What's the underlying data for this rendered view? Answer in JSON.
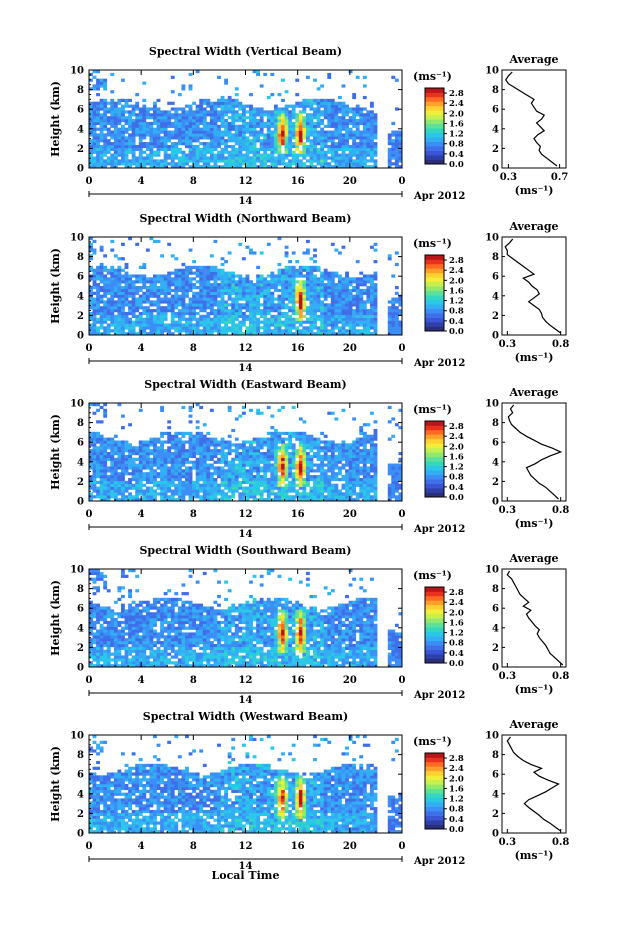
{
  "figure": {
    "x_title": "Local Time",
    "y_label": "Height (km)",
    "date_label": "Apr 2012",
    "day_label": "14",
    "x_ticks": [
      "0",
      "4",
      "8",
      "12",
      "16",
      "20",
      "0"
    ],
    "y_ticks": [
      "0",
      "2",
      "4",
      "6",
      "8",
      "10"
    ],
    "colorbar": {
      "unit": "(ms⁻¹)",
      "ticks": [
        "0.0",
        "0.4",
        "0.8",
        "1.2",
        "1.6",
        "2.0",
        "2.4",
        "2.8"
      ],
      "range": [
        0.0,
        3.0
      ],
      "colors": [
        "#2b2f7a",
        "#2d3fa8",
        "#3a55d6",
        "#3f6fe8",
        "#3a8ef5",
        "#32aef5",
        "#2ac8e6",
        "#35d6c0",
        "#5ce09a",
        "#90e870",
        "#c6ef50",
        "#f0ee3c",
        "#ffd032",
        "#ffa02a",
        "#ff6a22",
        "#e8321e",
        "#b8161a"
      ]
    },
    "avg_title": "Average",
    "avg_unit": "(ms⁻¹)"
  },
  "chart_data": [
    {
      "type": "heatmap",
      "title": "Spectral Width (Vertical Beam)",
      "xlabel": "Local Time",
      "ylabel": "Height (km)",
      "xlim": [
        0,
        24
      ],
      "ylim": [
        0,
        10
      ],
      "colorbar_range": [
        0.0,
        3.0
      ],
      "high_value_columns_hours": [
        14.8,
        16.2
      ],
      "average_profile": {
        "type": "line",
        "title": "Average",
        "xlabel": "(ms⁻¹)",
        "ylabel": "Height (km)",
        "x_ticks": [
          "0.3",
          "0.7"
        ],
        "xlim": [
          0.25,
          0.75
        ],
        "ylim": [
          0,
          10
        ],
        "height_km": [
          0.2,
          0.6,
          1.0,
          1.4,
          1.8,
          2.2,
          2.6,
          3.0,
          3.4,
          3.8,
          4.2,
          4.6,
          5.0,
          5.4,
          5.8,
          6.2,
          6.6,
          7.0,
          7.4,
          7.8,
          8.2,
          8.6,
          9.0,
          9.4,
          9.8
        ],
        "value": [
          0.68,
          0.64,
          0.6,
          0.56,
          0.54,
          0.55,
          0.52,
          0.5,
          0.53,
          0.58,
          0.55,
          0.52,
          0.56,
          0.58,
          0.52,
          0.5,
          0.48,
          0.5,
          0.45,
          0.4,
          0.35,
          0.3,
          0.28,
          0.3,
          0.33
        ]
      }
    },
    {
      "type": "heatmap",
      "title": "Spectral Width (Northward Beam)",
      "xlabel": "Local Time",
      "ylabel": "Height (km)",
      "xlim": [
        0,
        24
      ],
      "ylim": [
        0,
        10
      ],
      "colorbar_range": [
        0.0,
        3.0
      ],
      "high_value_columns_hours": [
        16.2
      ],
      "average_profile": {
        "type": "line",
        "title": "Average",
        "xlabel": "(ms⁻¹)",
        "ylabel": "Height (km)",
        "x_ticks": [
          "0.3",
          "0.8"
        ],
        "xlim": [
          0.25,
          0.85
        ],
        "ylim": [
          0,
          10
        ],
        "height_km": [
          0.2,
          0.6,
          1.0,
          1.4,
          1.8,
          2.2,
          2.6,
          3.0,
          3.4,
          3.8,
          4.2,
          4.6,
          5.0,
          5.4,
          5.8,
          6.2,
          6.6,
          7.0,
          7.4,
          7.8,
          8.2,
          8.6,
          9.0,
          9.4,
          9.8
        ],
        "value": [
          0.8,
          0.75,
          0.7,
          0.66,
          0.63,
          0.62,
          0.6,
          0.55,
          0.5,
          0.55,
          0.6,
          0.58,
          0.53,
          0.5,
          0.45,
          0.55,
          0.5,
          0.45,
          0.4,
          0.35,
          0.3,
          0.3,
          0.28,
          0.32,
          0.35
        ]
      }
    },
    {
      "type": "heatmap",
      "title": "Spectral Width (Eastward Beam)",
      "xlabel": "Local Time",
      "ylabel": "Height (km)",
      "xlim": [
        0,
        24
      ],
      "ylim": [
        0,
        10
      ],
      "colorbar_range": [
        0.0,
        3.0
      ],
      "high_value_columns_hours": [
        14.8,
        16.2
      ],
      "average_profile": {
        "type": "line",
        "title": "Average",
        "xlabel": "(ms⁻¹)",
        "ylabel": "Height (km)",
        "x_ticks": [
          "0.3",
          "0.8"
        ],
        "xlim": [
          0.25,
          0.85
        ],
        "ylim": [
          0,
          10
        ],
        "height_km": [
          0.2,
          0.6,
          1.0,
          1.4,
          1.8,
          2.2,
          2.6,
          3.0,
          3.4,
          3.8,
          4.2,
          4.6,
          5.0,
          5.4,
          5.8,
          6.2,
          6.6,
          7.0,
          7.4,
          7.8,
          8.2,
          8.6,
          9.0,
          9.4,
          9.8
        ],
        "value": [
          0.78,
          0.74,
          0.7,
          0.66,
          0.6,
          0.56,
          0.52,
          0.5,
          0.48,
          0.56,
          0.62,
          0.7,
          0.8,
          0.72,
          0.62,
          0.55,
          0.48,
          0.42,
          0.38,
          0.34,
          0.32,
          0.31,
          0.35,
          0.33,
          0.36
        ]
      }
    },
    {
      "type": "heatmap",
      "title": "Spectral Width (Southward Beam)",
      "xlabel": "Local Time",
      "ylabel": "Height (km)",
      "xlim": [
        0,
        24
      ],
      "ylim": [
        0,
        10
      ],
      "colorbar_range": [
        0.0,
        3.0
      ],
      "high_value_columns_hours": [
        14.8,
        16.2
      ],
      "average_profile": {
        "type": "line",
        "title": "Average",
        "xlabel": "(ms⁻¹)",
        "ylabel": "Height (km)",
        "x_ticks": [
          "0.3",
          "0.8"
        ],
        "xlim": [
          0.25,
          0.85
        ],
        "ylim": [
          0,
          10
        ],
        "height_km": [
          0.2,
          0.6,
          1.0,
          1.4,
          1.8,
          2.2,
          2.6,
          3.0,
          3.4,
          3.8,
          4.2,
          4.6,
          5.0,
          5.4,
          5.8,
          6.2,
          6.6,
          7.0,
          7.4,
          7.8,
          8.2,
          8.6,
          9.0,
          9.4,
          9.8
        ],
        "value": [
          0.82,
          0.78,
          0.74,
          0.7,
          0.68,
          0.66,
          0.63,
          0.6,
          0.58,
          0.6,
          0.56,
          0.53,
          0.5,
          0.48,
          0.52,
          0.45,
          0.5,
          0.46,
          0.42,
          0.4,
          0.38,
          0.36,
          0.34,
          0.3,
          0.32
        ]
      }
    },
    {
      "type": "heatmap",
      "title": "Spectral Width (Westward Beam)",
      "xlabel": "Local Time",
      "ylabel": "Height (km)",
      "xlim": [
        0,
        24
      ],
      "ylim": [
        0,
        10
      ],
      "colorbar_range": [
        0.0,
        3.0
      ],
      "high_value_columns_hours": [
        14.8,
        16.2
      ],
      "average_profile": {
        "type": "line",
        "title": "Average",
        "xlabel": "(ms⁻¹)",
        "ylabel": "Height (km)",
        "x_ticks": [
          "0.3",
          "0.8"
        ],
        "xlim": [
          0.25,
          0.85
        ],
        "ylim": [
          0,
          10
        ],
        "height_km": [
          0.2,
          0.6,
          1.0,
          1.4,
          1.8,
          2.2,
          2.6,
          3.0,
          3.4,
          3.8,
          4.2,
          4.6,
          5.0,
          5.4,
          5.8,
          6.2,
          6.6,
          7.0,
          7.4,
          7.8,
          8.2,
          8.6,
          9.0,
          9.4,
          9.8
        ],
        "value": [
          0.8,
          0.75,
          0.7,
          0.64,
          0.6,
          0.55,
          0.5,
          0.46,
          0.5,
          0.58,
          0.66,
          0.72,
          0.78,
          0.68,
          0.6,
          0.55,
          0.62,
          0.52,
          0.45,
          0.4,
          0.36,
          0.34,
          0.32,
          0.3,
          0.33
        ]
      }
    }
  ]
}
